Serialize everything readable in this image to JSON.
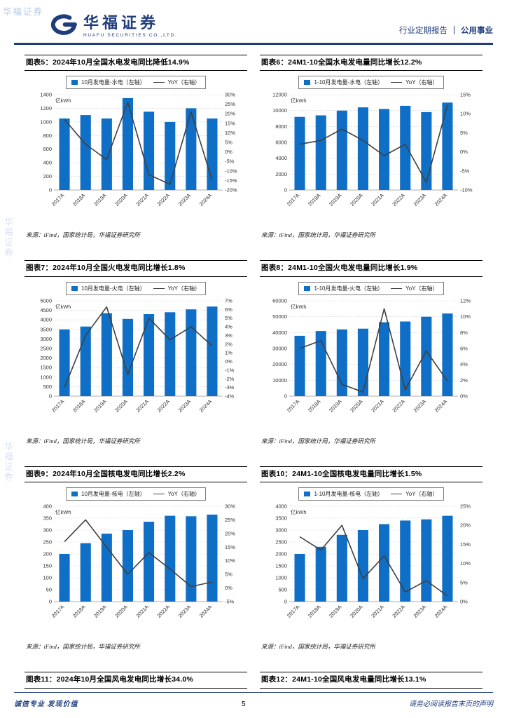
{
  "colors": {
    "bar": "#0f6fc6",
    "line": "#404040",
    "brand": "#1f3c7c",
    "grid": "#cfcfcf"
  },
  "watermark": {
    "text": "华福证券"
  },
  "header": {
    "brand_cn": "华福证券",
    "brand_en": "HUAFU SECURITIES CO.,LTD.",
    "report_type": "行业定期报告",
    "category": "公用事业"
  },
  "source_note": "来源：iFind，国家统计局，华福证券研究所",
  "chart_data": [
    {
      "type": "bar+line",
      "title": "图表5：2024年10月全国水电发电同比降低14.9%",
      "unit": "亿kWh",
      "legend": [
        "10月发电量-水电（左轴）",
        "YoY（右轴）"
      ],
      "categories": [
        "2017A",
        "2018A",
        "2019A",
        "2020A",
        "2021A",
        "2022A",
        "2023A",
        "2024A"
      ],
      "bars": [
        1050,
        1100,
        1050,
        1350,
        1150,
        1000,
        1200,
        1050
      ],
      "line": [
        17,
        4,
        -4,
        26,
        -12,
        -17,
        21,
        -14.9
      ],
      "left_axis": {
        "min": 0,
        "max": 1400,
        "step": 200
      },
      "right_axis": {
        "min": -20,
        "max": 30,
        "step": 5
      }
    },
    {
      "type": "bar+line",
      "title": "图表6：24M1-10全国水电发电量同比增长12.2%",
      "unit": "亿kWh",
      "legend": [
        "1-10月发电量-水电（左轴）",
        "YoY（右轴）"
      ],
      "categories": [
        "2017A",
        "2018A",
        "2019A",
        "2020A",
        "2021A",
        "2022A",
        "2023A",
        "2024A"
      ],
      "bars": [
        9200,
        9400,
        10000,
        10400,
        10200,
        10600,
        9800,
        11000
      ],
      "line": [
        2,
        3,
        6,
        3,
        -1,
        2,
        -8,
        12.2
      ],
      "left_axis": {
        "min": 0,
        "max": 12000,
        "step": 2000
      },
      "right_axis": {
        "min": -10,
        "max": 15,
        "step": 5
      }
    },
    {
      "type": "bar+line",
      "title": "图表7：2024年10月全国火电发电同比增长1.8%",
      "unit": "亿kWh",
      "legend": [
        "10月发电量-火电（左轴）",
        "YoY（右轴）"
      ],
      "categories": [
        "2017A",
        "2018A",
        "2019A",
        "2020A",
        "2021A",
        "2022A",
        "2023A",
        "2024A"
      ],
      "bars": [
        3500,
        3650,
        4350,
        4050,
        4300,
        4400,
        4550,
        4700
      ],
      "line": [
        -3,
        3,
        6.3,
        -1.5,
        5,
        2.5,
        4,
        1.8
      ],
      "left_axis": {
        "min": 0,
        "max": 5000,
        "step": 500
      },
      "right_axis": {
        "min": -4,
        "max": 7,
        "step": 1
      }
    },
    {
      "type": "bar+line",
      "title": "图表8：24M1-10全国火电发电量同比增长1.9%",
      "unit": "亿kWh",
      "legend": [
        "1-10月发电量-火电（左轴）",
        "YoY（右轴）"
      ],
      "categories": [
        "2017A",
        "2018A",
        "2019A",
        "2020A",
        "2021A",
        "2022A",
        "2023A",
        "2024A"
      ],
      "bars": [
        38000,
        41000,
        42000,
        42500,
        46500,
        47000,
        50000,
        52000
      ],
      "line": [
        6,
        7,
        1.5,
        0.5,
        11,
        0.8,
        5.7,
        1.9
      ],
      "left_axis": {
        "min": 0,
        "max": 60000,
        "step": 10000
      },
      "right_axis": {
        "min": 0,
        "max": 12,
        "step": 2
      }
    },
    {
      "type": "bar+line",
      "title": "图表9：2024年10月全国核电发电同比增长2.2%",
      "unit": "亿kWh",
      "legend": [
        "10月发电量-核电（左轴）",
        "YoY（右轴）"
      ],
      "categories": [
        "2017A",
        "2018A",
        "2019A",
        "2020A",
        "2021A",
        "2022A",
        "2023A",
        "2024A"
      ],
      "bars": [
        200,
        245,
        285,
        300,
        335,
        360,
        358,
        365
      ],
      "line": [
        17,
        25,
        15,
        5,
        13,
        7,
        0.5,
        2.2
      ],
      "left_axis": {
        "min": 0,
        "max": 400,
        "step": 50
      },
      "right_axis": {
        "min": -5,
        "max": 30,
        "step": 5
      }
    },
    {
      "type": "bar+line",
      "title": "图表10：24M1-10全国核电发电量同比增长1.5%",
      "unit": "亿kWh",
      "legend": [
        "1-10月发电量-核电（左轴）",
        "YoY（右轴）"
      ],
      "categories": [
        "2017A",
        "2018A",
        "2019A",
        "2020A",
        "2021A",
        "2022A",
        "2023A",
        "2024A"
      ],
      "bars": [
        2000,
        2300,
        2800,
        3000,
        3250,
        3400,
        3450,
        3600
      ],
      "line": [
        17,
        13.5,
        20,
        6,
        12,
        2.5,
        5.5,
        1.5
      ],
      "left_axis": {
        "min": 0,
        "max": 4000,
        "step": 500
      },
      "right_axis": {
        "min": 0,
        "max": 25,
        "step": 5
      }
    }
  ],
  "extra_titles": [
    "图表11：2024年10月全国风电发电同比增长34.0%",
    "图表12：24M1-10全国风电发电量同比增长13.1%"
  ],
  "footer": {
    "motto": "诚信专业  发现价值",
    "page": "5",
    "notice": "请务必阅读报告末页的声明"
  }
}
